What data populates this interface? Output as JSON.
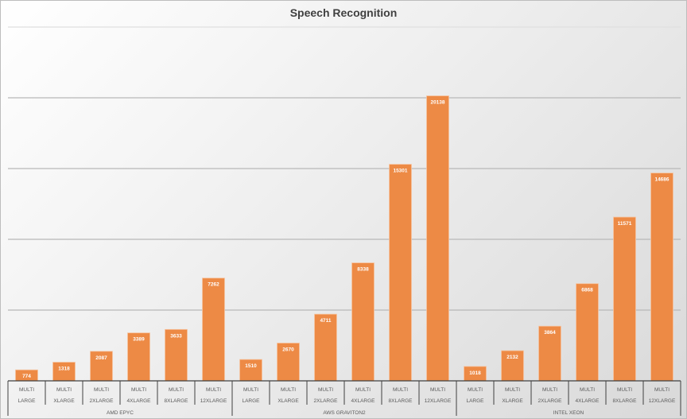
{
  "chart_data": {
    "type": "bar",
    "title": "Speech Recognition",
    "xlabel": "",
    "ylabel": "",
    "ylim": [
      0,
      25000
    ],
    "gridlines": [
      5000,
      10000,
      15000,
      20000,
      25000
    ],
    "grid": true,
    "bar_color": "#ED8A45",
    "groups": [
      {
        "name": "AMD EPYC",
        "categories": [
          [
            "MULTI",
            "LARGE"
          ],
          [
            "MULTI",
            "XLARGE"
          ],
          [
            "MULTI",
            "2XLARGE"
          ],
          [
            "MULTI",
            "4XLARGE"
          ],
          [
            "MULTI",
            "8XLARGE"
          ],
          [
            "MULTI",
            "12XLARGE"
          ]
        ],
        "values": [
          774,
          1318,
          2087,
          3389,
          3633,
          7262
        ]
      },
      {
        "name": "AWS GRAVITON2",
        "categories": [
          [
            "MULTI",
            "LARGE"
          ],
          [
            "MULTI",
            "XLARGE"
          ],
          [
            "MULTI",
            "2XLARGE"
          ],
          [
            "MULTI",
            "4XLARGE"
          ],
          [
            "MULTI",
            "8XLARGE"
          ],
          [
            "MULTI",
            "12XLARGE"
          ]
        ],
        "values": [
          1510,
          2670,
          4711,
          8338,
          15301,
          20138
        ]
      },
      {
        "name": "INTEL XEON",
        "categories": [
          [
            "MULTI",
            "LARGE"
          ],
          [
            "MULTI",
            "XLARGE"
          ],
          [
            "MULTI",
            "2XLARGE"
          ],
          [
            "MULTI",
            "4XLARGE"
          ],
          [
            "MULTI",
            "8XLARGE"
          ],
          [
            "MULTI",
            "12XLARGE"
          ]
        ],
        "values": [
          1018,
          2132,
          3864,
          6868,
          11571,
          14686
        ]
      }
    ]
  }
}
